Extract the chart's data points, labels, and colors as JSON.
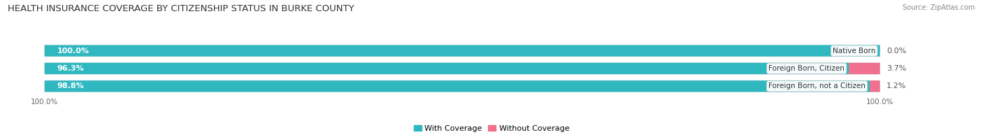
{
  "title": "HEALTH INSURANCE COVERAGE BY CITIZENSHIP STATUS IN BURKE COUNTY",
  "source": "Source: ZipAtlas.com",
  "categories": [
    "Native Born",
    "Foreign Born, Citizen",
    "Foreign Born, not a Citizen"
  ],
  "with_coverage": [
    100.0,
    96.3,
    98.8
  ],
  "without_coverage": [
    0.0,
    3.7,
    1.2
  ],
  "color_with": "#30b8c0",
  "color_without": "#f07090",
  "bar_bg_color": "#efefef",
  "bg_color": "#ffffff",
  "title_fontsize": 9.5,
  "label_fontsize": 8.0,
  "tick_fontsize": 7.5,
  "source_fontsize": 7.0,
  "bar_height": 0.62,
  "x_left_label": "100.0%",
  "x_right_label": "100.0%",
  "legend_label_with": "With Coverage",
  "legend_label_without": "Without Coverage"
}
